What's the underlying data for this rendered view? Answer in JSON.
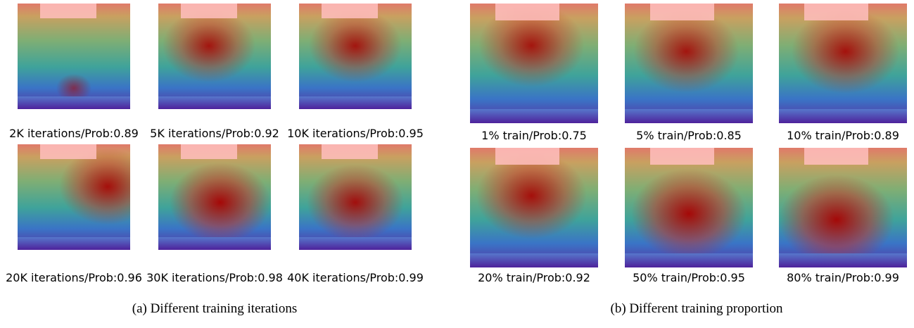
{
  "panels": [
    {
      "captions": [
        "2K iterations/Prob:0.89",
        "5K iterations/Prob:0.92",
        "10K iterations/Prob:0.95",
        "20K iterations/Prob:0.96",
        "30K iterations/Prob:0.98",
        "40K iterations/Prob:0.99"
      ],
      "subcaption": "(a) Different training iterations"
    },
    {
      "captions": [
        "1% train/Prob:0.75",
        "5% train/Prob:0.85",
        "10% train/Prob:0.89",
        "20% train/Prob:0.92",
        "50% train/Prob:0.95",
        "80% train/Prob:0.99"
      ],
      "subcaption": "(b) Different training proportion"
    }
  ]
}
